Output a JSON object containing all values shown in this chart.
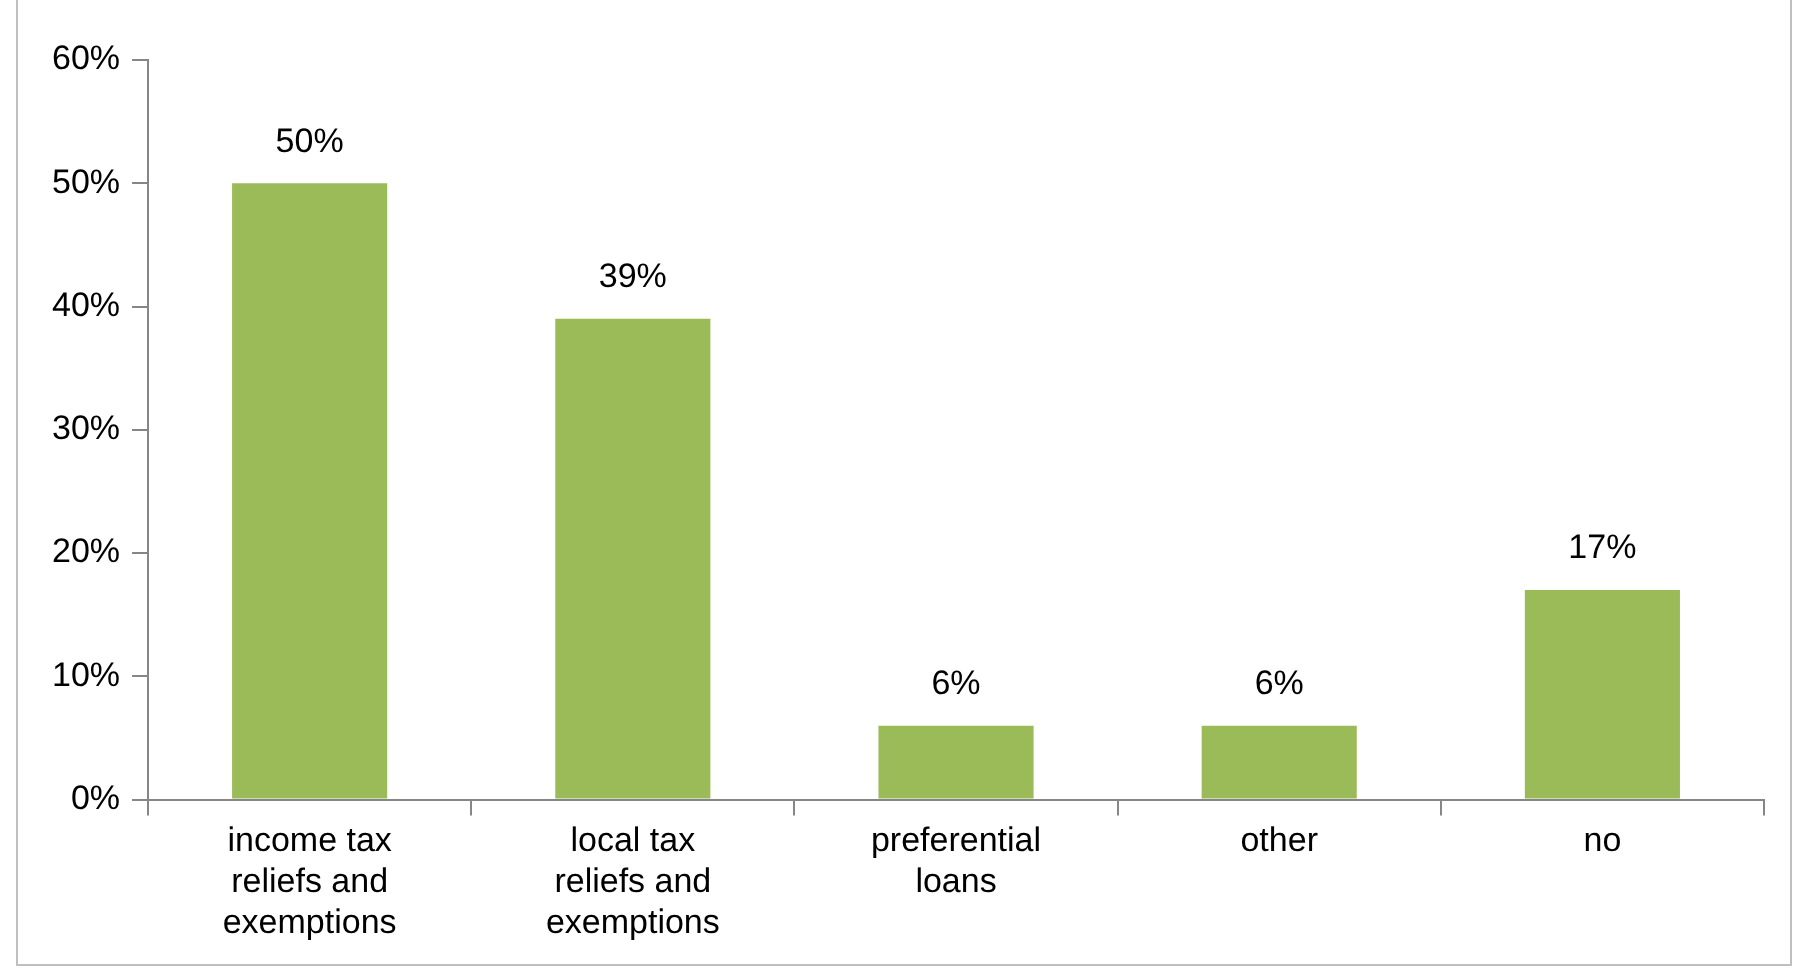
{
  "chart_data": {
    "type": "bar",
    "categories": [
      "income tax reliefs and exemptions",
      "local tax reliefs and exemptions",
      "preferential loans",
      "other",
      "no"
    ],
    "values": [
      50,
      39,
      6,
      6,
      17
    ],
    "value_labels": [
      "50%",
      "39%",
      "6%",
      "6%",
      "17%"
    ],
    "color": "#9bbb59",
    "ylim": [
      0,
      60
    ],
    "yticks": [
      {
        "value": 0,
        "label": "0%"
      },
      {
        "value": 10,
        "label": "10%"
      },
      {
        "value": 20,
        "label": "20%"
      },
      {
        "value": 30,
        "label": "30%"
      },
      {
        "value": 40,
        "label": "40%"
      },
      {
        "value": 50,
        "label": "50%"
      },
      {
        "value": 60,
        "label": "60%"
      }
    ],
    "grid": false,
    "legend": false
  }
}
